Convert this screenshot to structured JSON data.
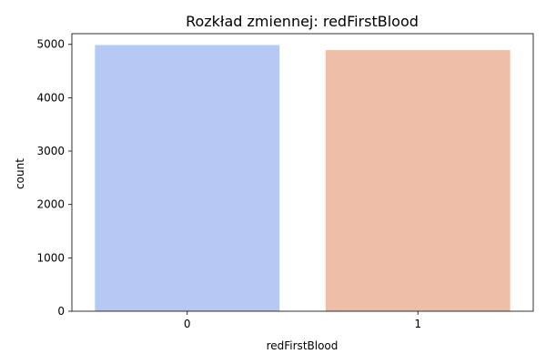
{
  "chart_data": {
    "type": "bar",
    "title": "Rozkład zmiennej: redFirstBlood",
    "xlabel": "redFirstBlood",
    "ylabel": "count",
    "categories": [
      "0",
      "1"
    ],
    "values": [
      4987,
      4892
    ],
    "colors": [
      "#b5c9f4",
      "#eebea8"
    ],
    "ylim": [
      0,
      5200
    ],
    "yticks": [
      0,
      1000,
      2000,
      3000,
      4000,
      5000
    ],
    "grid": false,
    "legend": "none"
  }
}
